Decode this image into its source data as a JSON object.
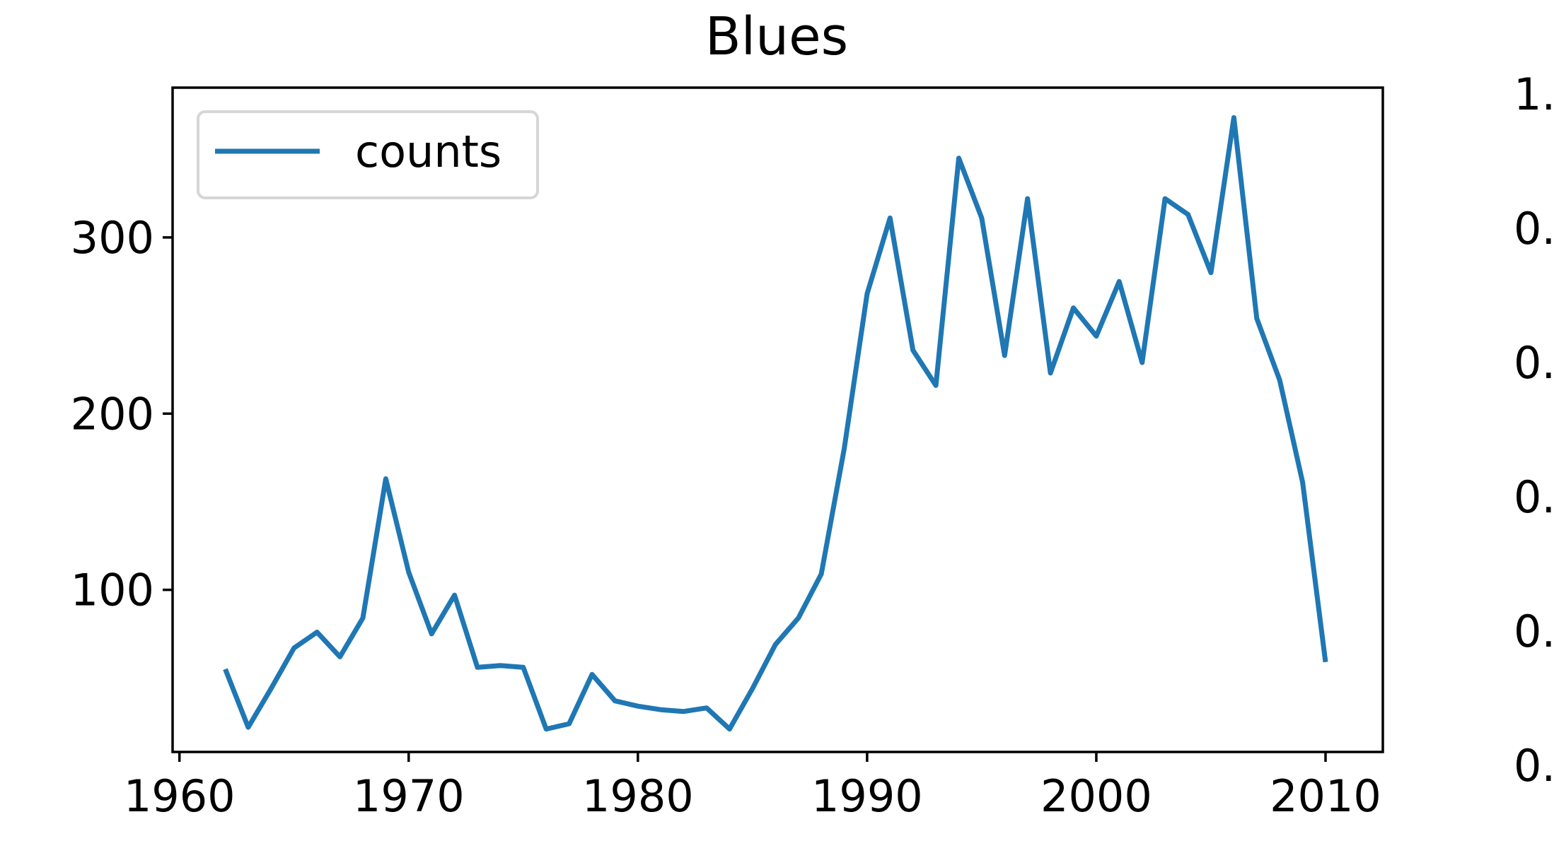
{
  "chart_data": [
    {
      "type": "line",
      "title": "Blues",
      "xlabel": "",
      "ylabel": "",
      "xlim": [
        1959.7,
        2012.5
      ],
      "ylim": [
        8,
        385
      ],
      "x_ticks": [
        1960,
        1970,
        1980,
        1990,
        2000,
        2010
      ],
      "y_ticks": [
        100,
        200,
        300
      ],
      "grid": false,
      "legend_position": "upper-left",
      "series": [
        {
          "name": "counts",
          "color": "#1f77b4",
          "x": [
            1962,
            1963,
            1964,
            1965,
            1966,
            1967,
            1968,
            1969,
            1970,
            1971,
            1972,
            1973,
            1974,
            1975,
            1976,
            1977,
            1978,
            1979,
            1980,
            1981,
            1982,
            1983,
            1984,
            1985,
            1986,
            1987,
            1988,
            1989,
            1990,
            1991,
            1992,
            1993,
            1994,
            1995,
            1996,
            1997,
            1998,
            1999,
            2000,
            2001,
            2002,
            2003,
            2004,
            2005,
            2006,
            2007,
            2008,
            2009,
            2010
          ],
          "values": [
            55,
            22,
            44,
            67,
            76,
            62,
            84,
            163,
            110,
            75,
            97,
            56,
            57,
            56,
            21,
            24,
            52,
            37,
            34,
            32,
            31,
            33,
            21,
            44,
            69,
            84,
            109,
            180,
            268,
            311,
            236,
            216,
            345,
            311,
            233,
            322,
            223,
            260,
            244,
            275,
            229,
            322,
            313,
            280,
            368,
            254,
            219,
            161,
            59
          ]
        }
      ]
    },
    {
      "type": "line",
      "partial": true,
      "y_tick_labels_visible": [
        "1.",
        "0.",
        "0.",
        "0.",
        "0.",
        "0."
      ]
    }
  ]
}
